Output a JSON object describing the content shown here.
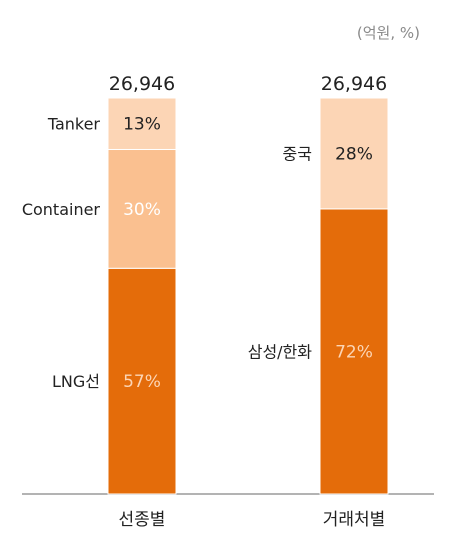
{
  "chart_data": {
    "type": "bar",
    "stacked": true,
    "unit_label": "(억원, %)",
    "categories": [
      "선종별",
      "거래처별"
    ],
    "totals": [
      "26,946",
      "26,946"
    ],
    "bars": [
      {
        "category": "선종별",
        "segments": [
          {
            "name": "LNG선",
            "value": 57,
            "label": "57%",
            "color": "#E46C0A",
            "text_color": "#FCD5B5"
          },
          {
            "name": "Container",
            "value": 30,
            "label": "30%",
            "color": "#FAC090",
            "text_color": "#FFFFFF"
          },
          {
            "name": "Tanker",
            "value": 13,
            "label": "13%",
            "color": "#FCD5B5",
            "text_color": "#222222"
          }
        ]
      },
      {
        "category": "거래처별",
        "segments": [
          {
            "name": "삼성/한화",
            "value": 72,
            "label": "72%",
            "color": "#E46C0A",
            "text_color": "#FCD5B5"
          },
          {
            "name": "중국",
            "value": 28,
            "label": "28%",
            "color": "#FCD5B5",
            "text_color": "#222222"
          }
        ]
      }
    ],
    "ylim": [
      0,
      100
    ],
    "grid": false,
    "legend": "none"
  }
}
